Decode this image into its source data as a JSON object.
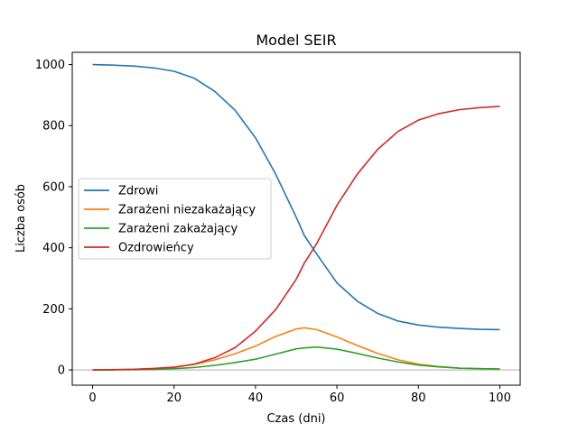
{
  "chart_data": {
    "type": "line",
    "title": "Model SEIR",
    "xlabel": "Czas (dni)",
    "ylabel": "Liczba osób",
    "xlim": [
      -5,
      105
    ],
    "ylim": [
      -50,
      1040
    ],
    "xticks": [
      0,
      20,
      40,
      60,
      80,
      100
    ],
    "yticks": [
      0,
      200,
      400,
      600,
      800,
      1000
    ],
    "xtick_labels": [
      "0",
      "20",
      "40",
      "60",
      "80",
      "100"
    ],
    "ytick_labels": [
      "0",
      "200",
      "400",
      "600",
      "800",
      "1000"
    ],
    "grid": false,
    "legend_position": "center-left",
    "reference_line": {
      "y": 0,
      "color": "#c8c8c8"
    },
    "x": [
      0,
      5,
      10,
      15,
      20,
      25,
      30,
      35,
      40,
      45,
      50,
      52,
      55,
      60,
      65,
      70,
      75,
      80,
      85,
      90,
      95,
      100
    ],
    "series": [
      {
        "name": "Zdrowi",
        "color": "#1f77b4",
        "values": [
          1000,
          998,
          995,
          989,
          978,
          955,
          912,
          850,
          760,
          640,
          500,
          440,
          380,
          285,
          225,
          185,
          160,
          147,
          140,
          136,
          133,
          132
        ]
      },
      {
        "name": "Zarażeni niezakażający",
        "color": "#ff7f0e",
        "values": [
          0,
          1,
          2,
          4,
          9,
          18,
          33,
          53,
          78,
          110,
          134,
          138,
          132,
          108,
          80,
          54,
          33,
          19,
          11,
          6,
          4,
          3
        ]
      },
      {
        "name": "Zarażeni zakażający",
        "color": "#2ca02c",
        "values": [
          0,
          0.5,
          1,
          2,
          4,
          8,
          15,
          24,
          35,
          52,
          69,
          72,
          75,
          68,
          54,
          39,
          26,
          16,
          10,
          6,
          4,
          3
        ]
      },
      {
        "name": "Ozdrowieńcy",
        "color": "#d62728",
        "values": [
          0,
          0.5,
          2,
          5,
          9,
          19,
          40,
          73,
          127,
          198,
          297,
          350,
          413,
          539,
          641,
          722,
          781,
          818,
          839,
          852,
          859,
          863
        ]
      }
    ]
  }
}
